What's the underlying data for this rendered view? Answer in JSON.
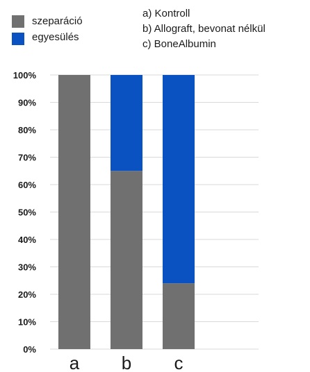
{
  "chart_data": {
    "type": "bar",
    "stacked": true,
    "categories": [
      "a",
      "b",
      "c"
    ],
    "series": [
      {
        "name": "szeparáció",
        "values": [
          100,
          65,
          24
        ],
        "color": "#707070"
      },
      {
        "name": "egyesülés",
        "values": [
          0,
          35,
          76
        ],
        "color": "#0a52c2"
      }
    ],
    "ylim": [
      0,
      100
    ],
    "yticks": [
      0,
      10,
      20,
      30,
      40,
      50,
      60,
      70,
      80,
      90,
      100
    ],
    "ytick_labels": [
      "0%",
      "10%",
      "20%",
      "30%",
      "40%",
      "50%",
      "60%",
      "70%",
      "80%",
      "90%",
      "100%"
    ],
    "grid": true,
    "grid_color": "#d9d9d9",
    "legend_position": "top-left",
    "notes": [
      "a) Kontroll",
      "b) Allograft, bevonat nélkül",
      "c) BoneAlbumin"
    ]
  }
}
